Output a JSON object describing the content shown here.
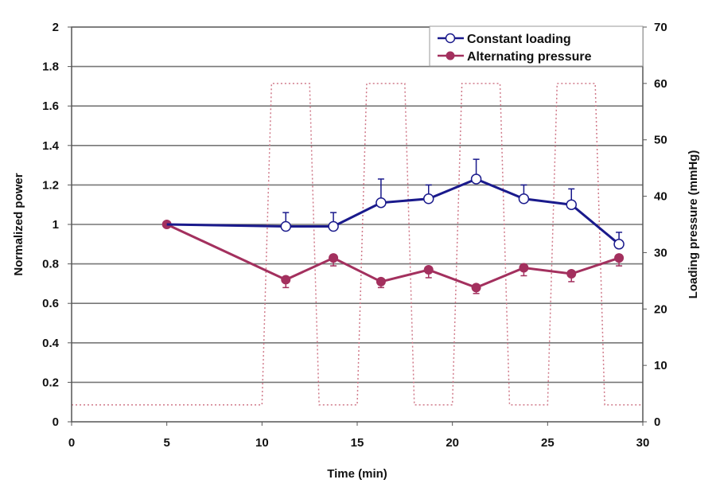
{
  "chart_data": {
    "type": "line",
    "title": "",
    "xlabel": "Time (min)",
    "ylabel": "Normalized power",
    "y2label": "Loading pressure (mmHg)",
    "xlim": [
      0,
      30
    ],
    "ylim": [
      0,
      2
    ],
    "y2lim": [
      0,
      70
    ],
    "xticks": [
      0,
      5,
      10,
      15,
      20,
      25,
      30
    ],
    "yticks": [
      0,
      0.2,
      0.4,
      0.6,
      0.8,
      1,
      1.2,
      1.4,
      1.6,
      1.8,
      2
    ],
    "y2ticks": [
      0,
      10,
      20,
      30,
      40,
      50,
      60,
      70
    ],
    "grid": "horizontal",
    "legend_position": "top-right",
    "series": [
      {
        "name": "Constant loading",
        "color": "#1a1a8c",
        "marker": "open-circle",
        "x": [
          5,
          11.25,
          13.75,
          16.25,
          18.75,
          21.25,
          23.75,
          26.25,
          28.75
        ],
        "values": [
          1.0,
          0.99,
          0.99,
          1.11,
          1.13,
          1.23,
          1.13,
          1.1,
          0.9
        ],
        "error_up": [
          0,
          0.07,
          0.07,
          0.12,
          0.07,
          0.1,
          0.07,
          0.08,
          0.06
        ]
      },
      {
        "name": "Alternating pressure",
        "color": "#a3305e",
        "marker": "filled-circle",
        "x": [
          5,
          11.25,
          13.75,
          16.25,
          18.75,
          21.25,
          23.75,
          26.25,
          28.75
        ],
        "values": [
          1.0,
          0.72,
          0.83,
          0.71,
          0.77,
          0.68,
          0.78,
          0.75,
          0.83
        ],
        "error_down": [
          0,
          0.04,
          0.04,
          0.03,
          0.04,
          0.03,
          0.04,
          0.04,
          0.04
        ]
      }
    ],
    "pressure_profile": {
      "axis": "right",
      "color": "#d07a8a",
      "style": "dotted",
      "x": [
        0,
        10,
        10.5,
        12.5,
        13,
        15,
        15.5,
        17.5,
        18,
        20,
        20.5,
        22.5,
        23,
        25,
        25.5,
        27.5,
        28,
        30
      ],
      "values": [
        3,
        3,
        60,
        60,
        3,
        3,
        60,
        60,
        3,
        3,
        60,
        60,
        3,
        3,
        60,
        60,
        3,
        3
      ]
    }
  }
}
